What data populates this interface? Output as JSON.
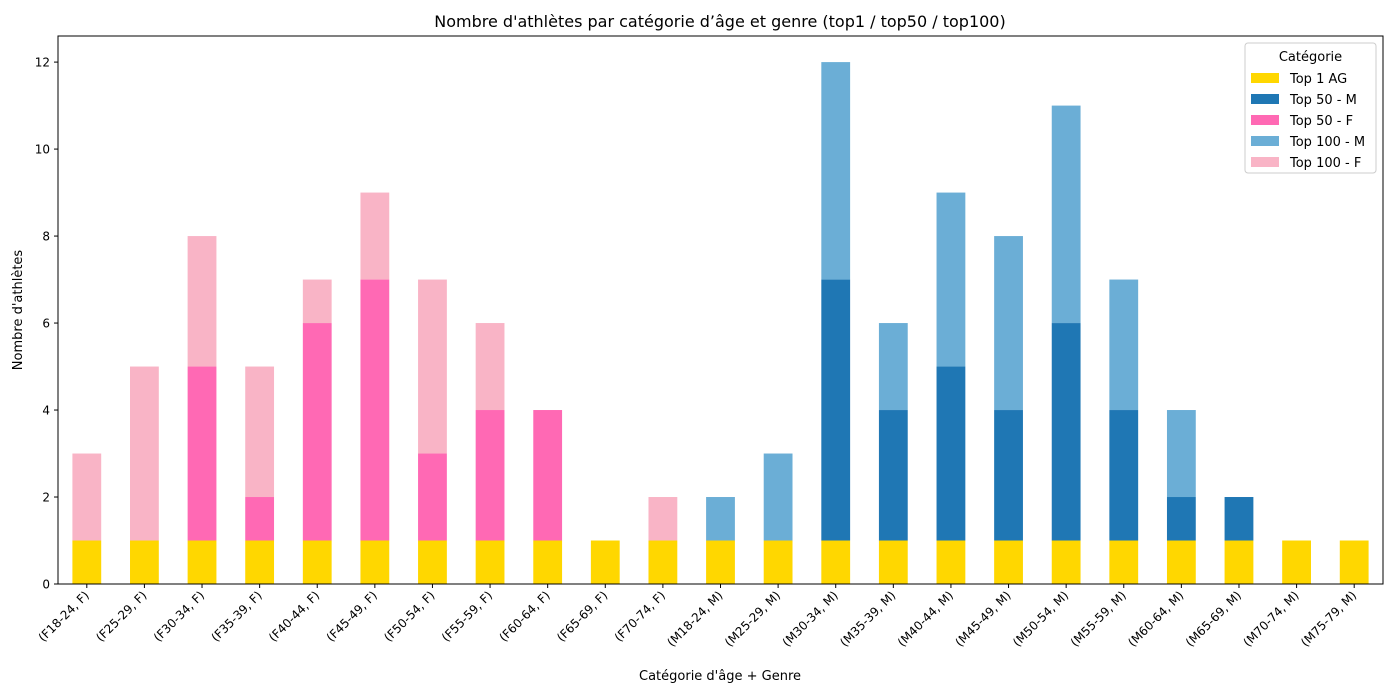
{
  "chart_data": {
    "type": "bar",
    "stacked": true,
    "title": "Nombre d'athlètes par catégorie d’âge et genre (top1 / top50 / top100)",
    "xlabel": "Catégorie d'âge + Genre",
    "ylabel": "Nombre d'athlètes",
    "ylim": [
      0,
      12.6
    ],
    "yticks": [
      0,
      2,
      4,
      6,
      8,
      10,
      12
    ],
    "grid": false,
    "legend": {
      "title": "Catégorie",
      "placement": "top-right"
    },
    "categories": [
      "(F18-24, F)",
      "(F25-29, F)",
      "(F30-34, F)",
      "(F35-39, F)",
      "(F40-44, F)",
      "(F45-49, F)",
      "(F50-54, F)",
      "(F55-59, F)",
      "(F60-64, F)",
      "(F65-69, F)",
      "(F70-74, F)",
      "(M18-24, M)",
      "(M25-29, M)",
      "(M30-34, M)",
      "(M35-39, M)",
      "(M40-44, M)",
      "(M45-49, M)",
      "(M50-54, M)",
      "(M55-59, M)",
      "(M60-64, M)",
      "(M65-69, M)",
      "(M70-74, M)",
      "(M75-79, M)"
    ],
    "series": [
      {
        "name": "Top 1 AG",
        "color": "#FFD700",
        "values": [
          1,
          1,
          1,
          1,
          1,
          1,
          1,
          1,
          1,
          1,
          1,
          1,
          1,
          1,
          1,
          1,
          1,
          1,
          1,
          1,
          1,
          1,
          1
        ]
      },
      {
        "name": "Top 50 - M",
        "color": "#1F77B4",
        "values": [
          0,
          0,
          0,
          0,
          0,
          0,
          0,
          0,
          0,
          0,
          0,
          0,
          0,
          6,
          3,
          4,
          3,
          5,
          3,
          1,
          1,
          0,
          0
        ]
      },
      {
        "name": "Top 50 - F",
        "color": "#FF69B4",
        "values": [
          0,
          0,
          4,
          1,
          5,
          6,
          2,
          3,
          3,
          0,
          0,
          0,
          0,
          0,
          0,
          0,
          0,
          0,
          0,
          0,
          0,
          0,
          0
        ]
      },
      {
        "name": "Top 100 - M",
        "color": "#6BAED6",
        "values": [
          0,
          0,
          0,
          0,
          0,
          0,
          0,
          0,
          0,
          0,
          0,
          1,
          2,
          5,
          2,
          4,
          4,
          5,
          3,
          2,
          0,
          0,
          0
        ]
      },
      {
        "name": "Top 100 - F",
        "color": "#F9B4C6",
        "values": [
          2,
          4,
          3,
          3,
          1,
          2,
          4,
          2,
          0,
          0,
          1,
          0,
          0,
          0,
          0,
          0,
          0,
          0,
          0,
          0,
          0,
          0,
          0
        ]
      }
    ]
  }
}
